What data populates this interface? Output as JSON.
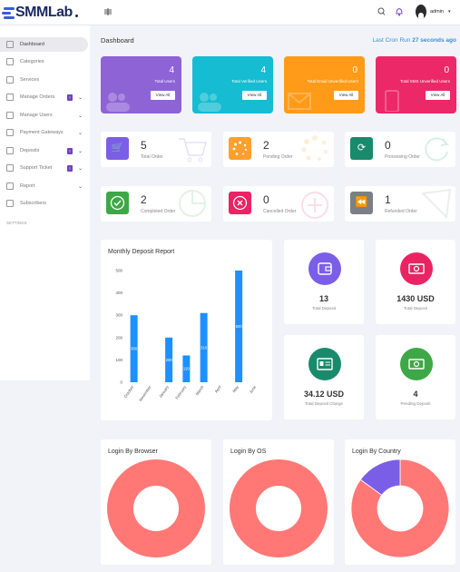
{
  "app": {
    "logo_text": "SMMLab"
  },
  "topbar": {
    "user_name": "admin"
  },
  "sidebar": {
    "items": [
      {
        "label": "Dashboard",
        "icon": "home-icon",
        "active": true
      },
      {
        "label": "Categories",
        "icon": "list-icon"
      },
      {
        "label": "Services",
        "icon": "briefcase-icon"
      },
      {
        "label": "Manage Orders",
        "icon": "cart-icon",
        "badge": "!",
        "chevron": true
      },
      {
        "label": "Manage Users",
        "icon": "users-icon",
        "chevron": true
      },
      {
        "label": "Payment Gateways",
        "icon": "card-icon",
        "chevron": true
      },
      {
        "label": "Deposits",
        "icon": "wallet-icon",
        "badge": "!",
        "chevron": true
      },
      {
        "label": "Support Ticket",
        "icon": "ticket-icon",
        "badge": "!",
        "chevron": true
      },
      {
        "label": "Report",
        "icon": "report-icon",
        "chevron": true
      },
      {
        "label": "Subscribers",
        "icon": "subscribers-icon"
      }
    ],
    "section": "SETTINGS"
  },
  "page": {
    "title": "Dashboard",
    "cron_label": "Last Cron Run",
    "cron_value": "27 seconds ago"
  },
  "stats": [
    {
      "value": "4",
      "label": "Total Users",
      "button": "View All",
      "color": "#8e63d6"
    },
    {
      "value": "4",
      "label": "Total Verified Users",
      "button": "View All",
      "color": "#16bcd1"
    },
    {
      "value": "0",
      "label": "Total Email Unverified Users",
      "button": "View All",
      "color": "#ff9b18"
    },
    {
      "value": "0",
      "label": "Total SMS Unverified Users",
      "button": "View All",
      "color": "#ec2869"
    }
  ],
  "orders": [
    {
      "value": "5",
      "label": "Total Order",
      "color": "#7b5ee8",
      "icon": "cart-icon"
    },
    {
      "value": "2",
      "label": "Pending Order",
      "color": "#ff9f2e",
      "icon": "spinner-icon"
    },
    {
      "value": "0",
      "label": "Processing Order",
      "color": "#198a6b",
      "icon": "refresh-icon"
    },
    {
      "value": "2",
      "label": "Completed Order",
      "color": "#3ea846",
      "icon": "check-icon"
    },
    {
      "value": "0",
      "label": "Cancelled Order",
      "color": "#ea2463",
      "icon": "cancel-icon"
    },
    {
      "value": "1",
      "label": "Refunded Order",
      "color": "#7b7f86",
      "icon": "rewind-icon"
    }
  ],
  "deposit_report": {
    "title": "Monthly Deposit Report"
  },
  "chart_data": {
    "type": "bar",
    "title": "Monthly Deposit Report",
    "categories": [
      "October",
      "November",
      "January",
      "February",
      "March",
      "April",
      "May",
      "June"
    ],
    "values": [
      300,
      0,
      200,
      120,
      310,
      0,
      500,
      0
    ],
    "value_labels": [
      "300",
      "",
      "200",
      "120",
      "310",
      "",
      "500",
      ""
    ],
    "yticks": [
      "500",
      "400",
      "300",
      "200",
      "100",
      "0"
    ],
    "ylim": [
      0,
      500
    ],
    "ylabel": "",
    "bar_color": "#1e90ff"
  },
  "deposits": [
    {
      "value": "13",
      "label": "Total Deposit",
      "color": "#7b5ee8",
      "icon": "wallet-icon"
    },
    {
      "value": "1430 USD",
      "label": "Total Deposit",
      "color": "#ea2463",
      "icon": "money-icon"
    },
    {
      "value": "34.12 USD",
      "label": "Total Deposit Charge",
      "color": "#198a6b",
      "icon": "id-card-icon"
    },
    {
      "value": "4",
      "label": "Pending Deposit",
      "color": "#3ea846",
      "icon": "money-icon"
    }
  ],
  "login_panels": [
    {
      "title": "Login By Browser"
    },
    {
      "title": "Login By OS"
    },
    {
      "title": "Login By Country"
    }
  ],
  "donuts": [
    {
      "slices": [
        {
          "value": 100,
          "color": "#ff7875"
        }
      ]
    },
    {
      "slices": [
        {
          "value": 100,
          "color": "#ff7875"
        }
      ]
    },
    {
      "slices": [
        {
          "value": 85,
          "color": "#ff7875"
        },
        {
          "value": 15,
          "color": "#7b5ee8"
        }
      ]
    }
  ]
}
